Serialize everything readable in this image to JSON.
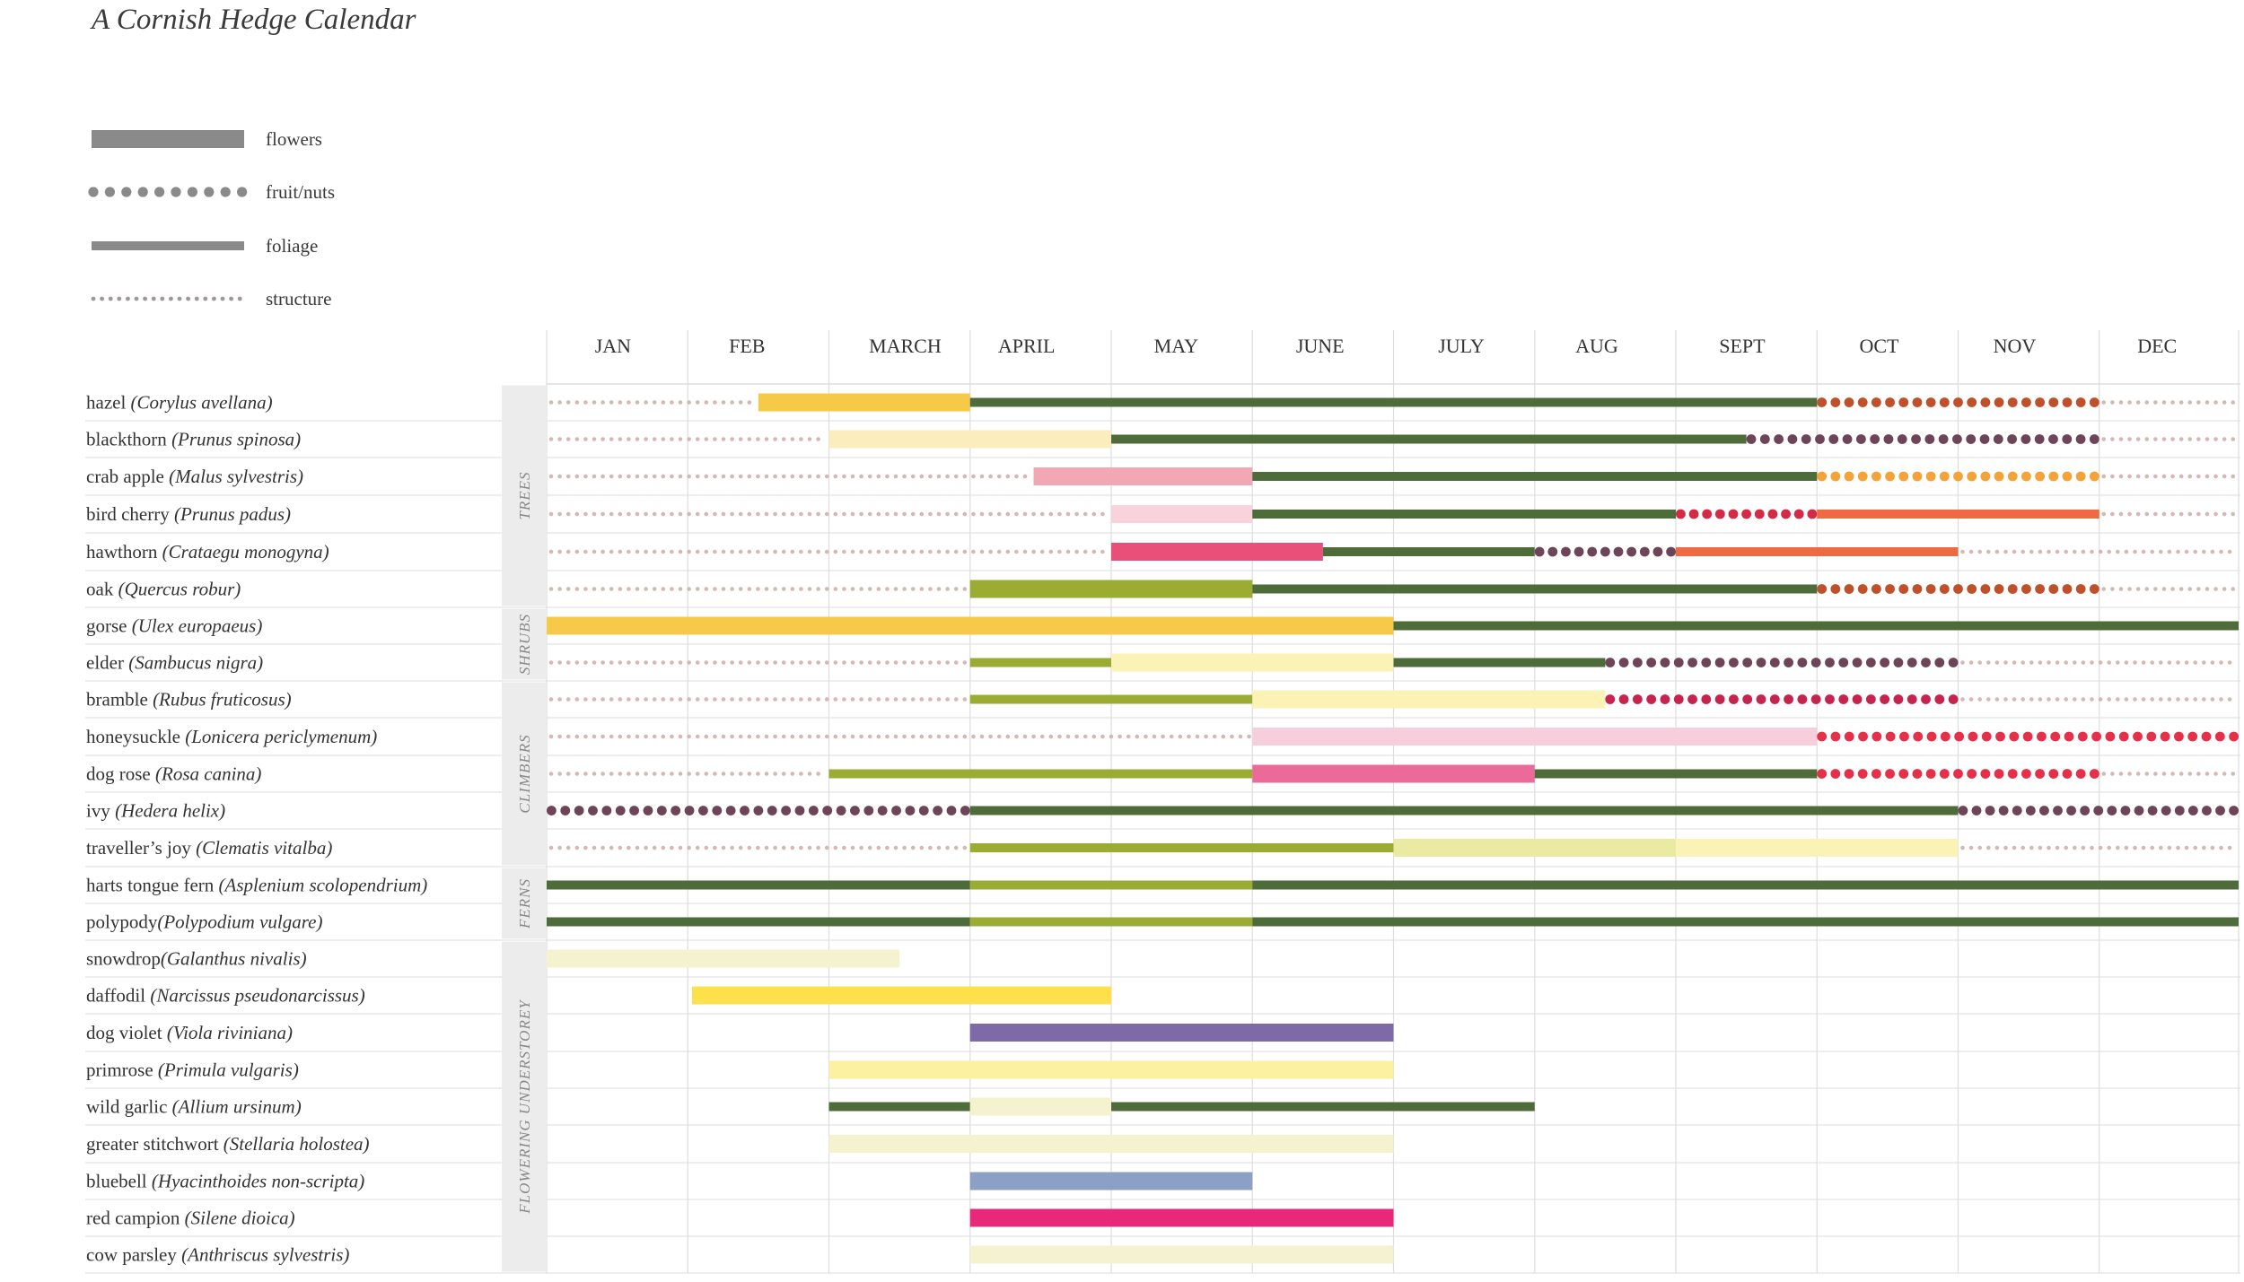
{
  "title": "A Cornish Hedge Calendar",
  "legend": [
    {
      "label": "flowers",
      "style": "flowers"
    },
    {
      "label": "fruit/nuts",
      "style": "fruit"
    },
    {
      "label": "foliage",
      "style": "foliage"
    },
    {
      "label": "structure",
      "style": "structure"
    }
  ],
  "colors": {
    "legend_grey": "#8a8a8a",
    "structure": "#d6b8b3",
    "grid": "#dddddd",
    "group_band": "#ececec"
  },
  "chart_data": {
    "type": "gantt",
    "title": "A Cornish Hedge Calendar",
    "months": [
      "JAN",
      "FEB",
      "MARCH",
      "APRIL",
      "MAY",
      "JUNE",
      "JULY",
      "AUG",
      "SEPT",
      "OCT",
      "NOV",
      "DEC"
    ],
    "x_unit": "month (0 = start of January, 12 = end of December)",
    "groups": [
      {
        "name": "TREES",
        "rows": [
          0,
          5
        ]
      },
      {
        "name": "SHRUBS",
        "rows": [
          6,
          7
        ]
      },
      {
        "name": "CLIMBERS",
        "rows": [
          8,
          12
        ]
      },
      {
        "name": "FERNS",
        "rows": [
          13,
          14
        ]
      },
      {
        "name": "FLOWERING UNDERSTOREY",
        "rows": [
          15,
          23
        ]
      }
    ],
    "plants": [
      {
        "name": "hazel ",
        "latin": "(Corylus avellana)",
        "segments": [
          {
            "type": "structure",
            "start": 0,
            "end": 1.5
          },
          {
            "type": "flowers",
            "start": 1.5,
            "end": 3,
            "color": "#f7c948"
          },
          {
            "type": "foliage",
            "start": 3,
            "end": 9,
            "color": "#4e6b3a"
          },
          {
            "type": "fruit",
            "start": 9,
            "end": 11,
            "color": "#c0502a"
          },
          {
            "type": "structure",
            "start": 11,
            "end": 12
          }
        ]
      },
      {
        "name": "blackthorn ",
        "latin": "(Prunus spinosa)",
        "segments": [
          {
            "type": "structure",
            "start": 0,
            "end": 2
          },
          {
            "type": "flowers",
            "start": 2,
            "end": 4,
            "color": "#fbedbe"
          },
          {
            "type": "foliage",
            "start": 4,
            "end": 8.5,
            "color": "#4e6b3a"
          },
          {
            "type": "fruit",
            "start": 8.5,
            "end": 11,
            "color": "#6e4558"
          },
          {
            "type": "structure",
            "start": 11,
            "end": 12
          }
        ]
      },
      {
        "name": "crab apple ",
        "latin": "(Malus sylvestris)",
        "segments": [
          {
            "type": "structure",
            "start": 0,
            "end": 3.45
          },
          {
            "type": "flowers",
            "start": 3.45,
            "end": 5,
            "color": "#f2a7b5"
          },
          {
            "type": "foliage",
            "start": 5,
            "end": 9,
            "color": "#4e6b3a"
          },
          {
            "type": "fruit",
            "start": 9,
            "end": 11,
            "color": "#f4a23a"
          },
          {
            "type": "structure",
            "start": 11,
            "end": 12
          }
        ]
      },
      {
        "name": "bird cherry ",
        "latin": "(Prunus padus)",
        "segments": [
          {
            "type": "structure",
            "start": 0,
            "end": 4
          },
          {
            "type": "flowers",
            "start": 4,
            "end": 5,
            "color": "#f9d3dc"
          },
          {
            "type": "foliage",
            "start": 5,
            "end": 8,
            "color": "#4e6b3a"
          },
          {
            "type": "fruit",
            "start": 8,
            "end": 9,
            "color": "#d42a45"
          },
          {
            "type": "foliage",
            "start": 9,
            "end": 11,
            "color": "#ef6a42"
          },
          {
            "type": "structure",
            "start": 11,
            "end": 12
          }
        ]
      },
      {
        "name": "hawthorn ",
        "latin": "(Crataegu monogyna)",
        "segments": [
          {
            "type": "structure",
            "start": 0,
            "end": 4
          },
          {
            "type": "flowers",
            "start": 4,
            "end": 5.5,
            "color": "#e8507a"
          },
          {
            "type": "foliage",
            "start": 5.5,
            "end": 7,
            "color": "#4e6b3a"
          },
          {
            "type": "fruit",
            "start": 7,
            "end": 8,
            "color": "#6e4558"
          },
          {
            "type": "foliage",
            "start": 8,
            "end": 10,
            "color": "#ef6a42"
          },
          {
            "type": "structure",
            "start": 10,
            "end": 12
          }
        ]
      },
      {
        "name": "oak ",
        "latin": "(Quercus robur)",
        "segments": [
          {
            "type": "structure",
            "start": 0,
            "end": 3
          },
          {
            "type": "flowers",
            "start": 3,
            "end": 5,
            "color": "#9aad32"
          },
          {
            "type": "foliage",
            "start": 5,
            "end": 9,
            "color": "#4e6b3a"
          },
          {
            "type": "fruit",
            "start": 9,
            "end": 11,
            "color": "#c0502a"
          },
          {
            "type": "structure",
            "start": 11,
            "end": 12
          }
        ]
      },
      {
        "name": "gorse ",
        "latin": "(Ulex europaeus)",
        "segments": [
          {
            "type": "flowers",
            "start": 0,
            "end": 6,
            "color": "#f7c948"
          },
          {
            "type": "foliage",
            "start": 6,
            "end": 12,
            "color": "#4e6b3a"
          }
        ]
      },
      {
        "name": "elder ",
        "latin": "(Sambucus nigra)",
        "segments": [
          {
            "type": "structure",
            "start": 0,
            "end": 3
          },
          {
            "type": "foliage",
            "start": 3,
            "end": 4,
            "color": "#9aad32"
          },
          {
            "type": "flowers",
            "start": 4,
            "end": 6,
            "color": "#fbf2b5"
          },
          {
            "type": "foliage",
            "start": 6,
            "end": 7.5,
            "color": "#4e6b3a"
          },
          {
            "type": "fruit",
            "start": 7.5,
            "end": 10,
            "color": "#6e4558"
          },
          {
            "type": "structure",
            "start": 10,
            "end": 12
          }
        ]
      },
      {
        "name": "bramble ",
        "latin": "(Rubus fruticosus)",
        "segments": [
          {
            "type": "structure",
            "start": 0,
            "end": 3
          },
          {
            "type": "foliage",
            "start": 3,
            "end": 5,
            "color": "#9aad32"
          },
          {
            "type": "flowers",
            "start": 5,
            "end": 7.5,
            "color": "#fbf2b5"
          },
          {
            "type": "fruit",
            "start": 7.5,
            "end": 10,
            "color": "#c6244d"
          },
          {
            "type": "structure",
            "start": 10,
            "end": 12
          }
        ]
      },
      {
        "name": "honeysuckle ",
        "latin": "(Lonicera periclymenum)",
        "segments": [
          {
            "type": "structure",
            "start": 0,
            "end": 5
          },
          {
            "type": "flowers",
            "start": 5,
            "end": 9,
            "color": "#f7cfdc"
          },
          {
            "type": "fruit",
            "start": 9,
            "end": 12,
            "color": "#e5304a"
          }
        ]
      },
      {
        "name": "dog rose ",
        "latin": "(Rosa canina)",
        "segments": [
          {
            "type": "structure",
            "start": 0,
            "end": 2
          },
          {
            "type": "foliage",
            "start": 2,
            "end": 5,
            "color": "#9aad32"
          },
          {
            "type": "flowers",
            "start": 5,
            "end": 7,
            "color": "#ec6a9a"
          },
          {
            "type": "foliage",
            "start": 7,
            "end": 9,
            "color": "#4e6b3a"
          },
          {
            "type": "fruit",
            "start": 9,
            "end": 11,
            "color": "#e5304a"
          },
          {
            "type": "structure",
            "start": 11,
            "end": 12
          }
        ]
      },
      {
        "name": "ivy ",
        "latin": "(Hedera helix)",
        "segments": [
          {
            "type": "fruit",
            "start": 0,
            "end": 3,
            "color": "#6e4558"
          },
          {
            "type": "foliage",
            "start": 3,
            "end": 10,
            "color": "#4e6b3a"
          },
          {
            "type": "fruit",
            "start": 10,
            "end": 12,
            "color": "#6e4558"
          }
        ]
      },
      {
        "name": "traveller’s joy ",
        "latin": "(Clematis vitalba)",
        "segments": [
          {
            "type": "structure",
            "start": 0,
            "end": 3
          },
          {
            "type": "foliage",
            "start": 3,
            "end": 6,
            "color": "#9aad32"
          },
          {
            "type": "flowers",
            "start": 6,
            "end": 8,
            "color": "#ebeaa3"
          },
          {
            "type": "flowers",
            "start": 8,
            "end": 10,
            "color": "#fbf2b5"
          },
          {
            "type": "structure",
            "start": 10,
            "end": 12
          }
        ]
      },
      {
        "name": "harts tongue fern ",
        "latin": "(Asplenium scolopendrium)",
        "segments": [
          {
            "type": "foliage",
            "start": 0,
            "end": 3,
            "color": "#4e6b3a"
          },
          {
            "type": "foliage",
            "start": 3,
            "end": 5,
            "color": "#9aad32"
          },
          {
            "type": "foliage",
            "start": 5,
            "end": 12,
            "color": "#4e6b3a"
          }
        ]
      },
      {
        "name": "polypody",
        "latin": "(Polypodium vulgare)",
        "segments": [
          {
            "type": "foliage",
            "start": 0,
            "end": 3,
            "color": "#4e6b3a"
          },
          {
            "type": "foliage",
            "start": 3,
            "end": 5,
            "color": "#9aad32"
          },
          {
            "type": "foliage",
            "start": 5,
            "end": 12,
            "color": "#4e6b3a"
          }
        ]
      },
      {
        "name": "snowdrop",
        "latin": "(Galanthus nivalis)",
        "segments": [
          {
            "type": "flowers",
            "start": 0,
            "end": 2.5,
            "color": "#f5f3cf"
          }
        ]
      },
      {
        "name": "daffodil ",
        "latin": "(Narcissus pseudonarcissus)",
        "segments": [
          {
            "type": "flowers",
            "start": 1.03,
            "end": 4,
            "color": "#fde04a"
          }
        ]
      },
      {
        "name": "dog violet ",
        "latin": "(Viola riviniana)",
        "segments": [
          {
            "type": "flowers",
            "start": 3,
            "end": 6,
            "color": "#7e6aa6"
          }
        ]
      },
      {
        "name": "primrose ",
        "latin": "(Primula vulgaris)",
        "segments": [
          {
            "type": "flowers",
            "start": 2,
            "end": 6,
            "color": "#fbf1a0"
          }
        ]
      },
      {
        "name": "wild garlic ",
        "latin": "(Allium ursinum)",
        "segments": [
          {
            "type": "foliage",
            "start": 2,
            "end": 3,
            "color": "#4e6b3a"
          },
          {
            "type": "flowers",
            "start": 3,
            "end": 4,
            "color": "#f5f3cf"
          },
          {
            "type": "foliage",
            "start": 4,
            "end": 7,
            "color": "#4e6b3a"
          }
        ]
      },
      {
        "name": "greater stitchwort ",
        "latin": "(Stellaria holostea)",
        "segments": [
          {
            "type": "flowers",
            "start": 2,
            "end": 6,
            "color": "#f5f3cf"
          }
        ]
      },
      {
        "name": "bluebell ",
        "latin": "(Hyacinthoides non-scripta)",
        "segments": [
          {
            "type": "flowers",
            "start": 3,
            "end": 5,
            "color": "#8c9fc4"
          }
        ]
      },
      {
        "name": "red campion ",
        "latin": "(Silene dioica)",
        "segments": [
          {
            "type": "flowers",
            "start": 3,
            "end": 6,
            "color": "#e8287a"
          }
        ]
      },
      {
        "name": "cow parsley ",
        "latin": "(Anthriscus sylvestris)",
        "segments": [
          {
            "type": "flowers",
            "start": 3,
            "end": 6,
            "color": "#f5f3cf"
          }
        ]
      }
    ]
  }
}
